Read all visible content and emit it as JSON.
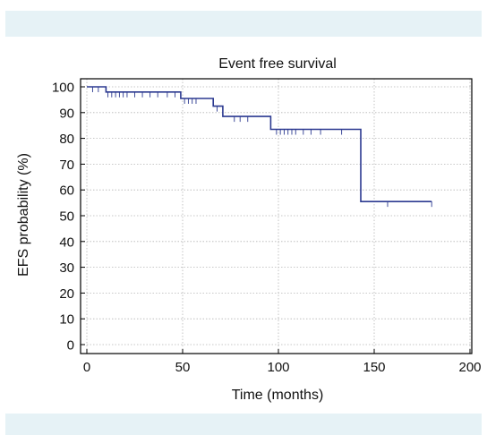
{
  "colors": {
    "band": "#e6f2f6",
    "curve": "#2b3990",
    "grid": "#b5b5b5"
  },
  "chart_data": {
    "type": "line",
    "title": "Event free survival",
    "xlabel": "Time (months)",
    "ylabel": "EFS probability (%)",
    "xlim": [
      0,
      200
    ],
    "ylim": [
      0,
      100
    ],
    "xticks": [
      0,
      50,
      100,
      150,
      200
    ],
    "yticks": [
      0,
      10,
      20,
      30,
      40,
      50,
      60,
      70,
      80,
      90,
      100
    ],
    "grid": true,
    "series": [
      {
        "steps": [
          [
            0,
            100
          ],
          [
            10,
            100
          ],
          [
            10,
            98
          ],
          [
            49,
            98
          ],
          [
            49,
            95.5
          ],
          [
            66,
            95.5
          ],
          [
            66,
            92.5
          ],
          [
            71,
            92.5
          ],
          [
            71,
            88.5
          ],
          [
            96,
            88.5
          ],
          [
            96,
            83.5
          ],
          [
            143,
            83.5
          ],
          [
            143,
            55.5
          ],
          [
            180,
            55.5
          ]
        ],
        "censored": [
          [
            3,
            100
          ],
          [
            6,
            100
          ],
          [
            11,
            98
          ],
          [
            13,
            98
          ],
          [
            15,
            98
          ],
          [
            17,
            98
          ],
          [
            19,
            98
          ],
          [
            21,
            98
          ],
          [
            25,
            98
          ],
          [
            29,
            98
          ],
          [
            33,
            98
          ],
          [
            37,
            98
          ],
          [
            42,
            98
          ],
          [
            46,
            98
          ],
          [
            51,
            95.5
          ],
          [
            53,
            95.5
          ],
          [
            55,
            95.5
          ],
          [
            57,
            95.5
          ],
          [
            68,
            92.5
          ],
          [
            77,
            88.5
          ],
          [
            80,
            88.5
          ],
          [
            84,
            88.5
          ],
          [
            99,
            83.5
          ],
          [
            101,
            83.5
          ],
          [
            103,
            83.5
          ],
          [
            105,
            83.5
          ],
          [
            107,
            83.5
          ],
          [
            109,
            83.5
          ],
          [
            113,
            83.5
          ],
          [
            117,
            83.5
          ],
          [
            122,
            83.5
          ],
          [
            133,
            83.5
          ],
          [
            157,
            55.5
          ],
          [
            180,
            55.5
          ]
        ]
      }
    ]
  }
}
